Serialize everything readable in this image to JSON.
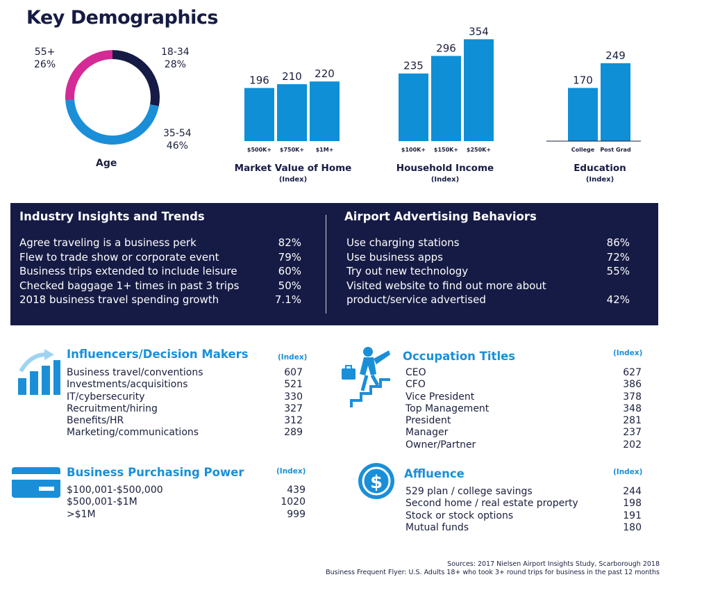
{
  "title": "Key Demographics",
  "colors": {
    "navy": "#161b45",
    "blue": "#1a8fd8",
    "magenta": "#d42a96",
    "bar": "#0f8fd6"
  },
  "age": {
    "label": "Age",
    "segments": [
      {
        "name": "18-34",
        "pct": "28%",
        "value": 28,
        "color": "#161b45"
      },
      {
        "name": "35-54",
        "pct": "46%",
        "value": 46,
        "color": "#1a8fd8"
      },
      {
        "name": "55+",
        "pct": "26%",
        "value": 26,
        "color": "#d42a96"
      }
    ]
  },
  "chart_data": [
    {
      "type": "pie",
      "title": "Age",
      "categories": [
        "18-34",
        "35-54",
        "55+"
      ],
      "values": [
        28,
        46,
        26
      ]
    },
    {
      "type": "bar",
      "title": "Market Value of Home",
      "subtitle": "(Index)",
      "categories": [
        "$500K+",
        "$750K+",
        "$1M+"
      ],
      "values": [
        196,
        210,
        220
      ]
    },
    {
      "type": "bar",
      "title": "Household Income",
      "subtitle": "(Index)",
      "categories": [
        "$100K+",
        "$150K+",
        "$250K+"
      ],
      "values": [
        235,
        296,
        354
      ]
    },
    {
      "type": "bar",
      "title": "Education",
      "subtitle": "(Index)",
      "categories": [
        "College",
        "Post Grad"
      ],
      "values": [
        170,
        249
      ]
    }
  ],
  "industry": {
    "title": "Industry Insights and Trends",
    "rows": [
      {
        "label": "Agree traveling is a business perk",
        "value": "82%"
      },
      {
        "label": "Flew to trade show or corporate event",
        "value": "79%"
      },
      {
        "label": "Business trips extended to include leisure",
        "value": "60%"
      },
      {
        "label": "Checked baggage 1+ times in past 3 trips",
        "value": "50%"
      },
      {
        "label": "2018 business travel spending growth",
        "value": "7.1%"
      }
    ]
  },
  "airport": {
    "title": "Airport Advertising Behaviors",
    "rows": [
      {
        "label": "Use charging stations",
        "value": "86%"
      },
      {
        "label": "Use business apps",
        "value": "72%"
      },
      {
        "label": "Try out new technology",
        "value": "55%"
      },
      {
        "label": "Visited website to find out more about",
        "value": ""
      },
      {
        "label": "product/service advertised",
        "value": "42%"
      }
    ]
  },
  "influencers": {
    "title": "Influencers/Decision Makers",
    "index_label": "(Index)",
    "rows": [
      {
        "label": "Business travel/conventions",
        "value": "607"
      },
      {
        "label": "Investments/acquisitions",
        "value": "521"
      },
      {
        "label": "IT/cybersecurity",
        "value": "330"
      },
      {
        "label": "Recruitment/hiring",
        "value": "327"
      },
      {
        "label": "Benefits/HR",
        "value": "312"
      },
      {
        "label": "Marketing/communications",
        "value": "289"
      }
    ]
  },
  "purchasing": {
    "title": "Business Purchasing Power",
    "index_label": "(Index)",
    "rows": [
      {
        "label": "$100,001-$500,000",
        "value": "439"
      },
      {
        "label": "$500,001-$1M",
        "value": "1020"
      },
      {
        "label": ">$1M",
        "value": "999"
      }
    ]
  },
  "occupation": {
    "title": "Occupation Titles",
    "index_label": "(Index)",
    "rows": [
      {
        "label": "CEO",
        "value": "627"
      },
      {
        "label": "CFO",
        "value": "386"
      },
      {
        "label": "Vice President",
        "value": "378"
      },
      {
        "label": "Top Management",
        "value": "348"
      },
      {
        "label": "President",
        "value": "281"
      },
      {
        "label": "Manager",
        "value": "237"
      },
      {
        "label": "Owner/Partner",
        "value": "202"
      }
    ]
  },
  "affluence": {
    "title": "Affluence",
    "index_label": "(Index)",
    "rows": [
      {
        "label": "529 plan / college savings",
        "value": "244"
      },
      {
        "label": "Second home / real estate property",
        "value": "198"
      },
      {
        "label": "Stock or stock options",
        "value": "191"
      },
      {
        "label": "Mutual funds",
        "value": "180"
      }
    ]
  },
  "icons": [
    "growth-chart-icon",
    "climbing-businessman-icon",
    "credit-card-icon",
    "dollar-coin-icon"
  ],
  "source": {
    "line1": "Sources: 2017 Nielsen Airport Insights Study, Scarborough 2018",
    "line2": "Business Frequent Flyer: U.S. Adults 18+ who took 3+ round trips for business in the past 12 months"
  }
}
